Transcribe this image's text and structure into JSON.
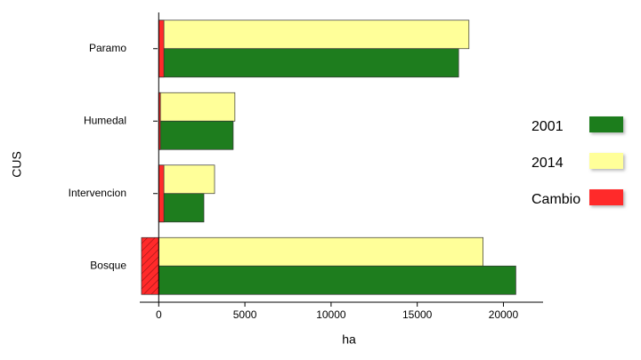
{
  "chart_data": {
    "type": "bar",
    "orientation": "horizontal",
    "x_label": "ha",
    "y_label": "CUS",
    "categories": [
      "Paramo",
      "Humedal",
      "Intervencion",
      "Bosque"
    ],
    "series": [
      {
        "name": "2001",
        "color": "#1e7d1e",
        "values": [
          17400,
          4320,
          2620,
          20720
        ]
      },
      {
        "name": "2014",
        "color": "#ffff99",
        "values": [
          18000,
          4420,
          3240,
          18820
        ]
      },
      {
        "name": "Cambio",
        "color": "#ff2a2a",
        "values": [
          300,
          100,
          300,
          -1000
        ]
      }
    ],
    "xlim": [
      -1100,
      22300
    ],
    "xticks": [
      0,
      5000,
      10000,
      15000,
      20000
    ],
    "legend": "right"
  }
}
